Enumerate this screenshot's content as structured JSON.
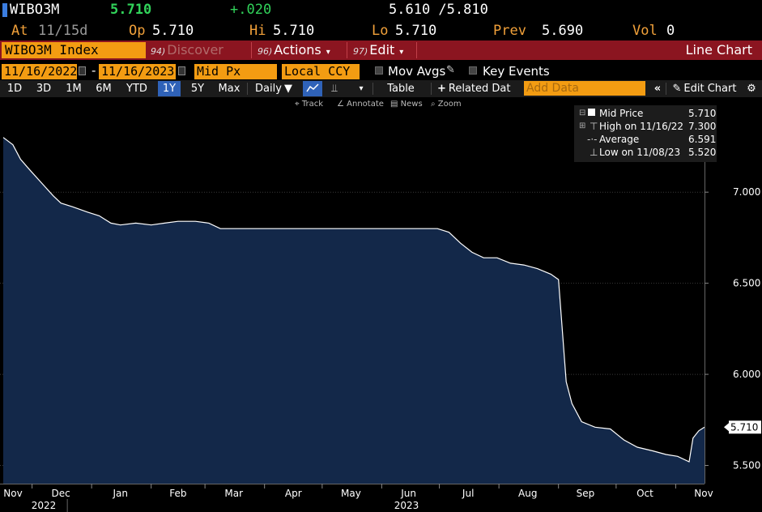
{
  "quote": {
    "ticker": "WIBO3M",
    "last": "5.710",
    "change": "+.020",
    "bid_ask": "5.610 /5.810"
  },
  "stats": {
    "at_label": "At",
    "at_value": "11/15d",
    "open_label": "Op",
    "open_value": "5.710",
    "high_label": "Hi",
    "high_value": "5.710",
    "low_label": "Lo",
    "low_value": "5.710",
    "prev_label": "Prev",
    "prev_value": "5.690",
    "vol_label": "Vol",
    "vol_value": "0"
  },
  "titlebar": {
    "security": "WIBO3M Index",
    "discover_num": "94)",
    "discover": "Discover",
    "actions_num": "96)",
    "actions": "Actions",
    "edit_num": "97)",
    "edit": "Edit",
    "view_name": "Line Chart"
  },
  "params": {
    "start_date": "11/16/2022",
    "date_sep": "-",
    "end_date": "11/16/2023",
    "field": "Mid Px",
    "currency": "Local CCY",
    "mov_avgs": "Mov Avgs",
    "key_events": "Key Events"
  },
  "toolbar": {
    "periods": [
      "1D",
      "3D",
      "1M",
      "6M",
      "YTD",
      "1Y",
      "5Y",
      "Max"
    ],
    "selected_period": "1Y",
    "frequency": "Daily",
    "table": "Table",
    "related": "Related Dat",
    "add_data_placeholder": "Add Data",
    "edit_chart": "Edit Chart"
  },
  "tools": {
    "track": "Track",
    "annotate": "Annotate",
    "news": "News",
    "zoom": "Zoom"
  },
  "legend": {
    "series_label": "Mid Price",
    "series_value": "5.710",
    "high_label": "High on 11/16/22",
    "high_value": "7.300",
    "avg_label": "Average",
    "avg_value": "6.591",
    "low_label": "Low on 11/08/23",
    "low_value": "5.520"
  },
  "colors": {
    "accent_orange": "#f39c12",
    "title_bar_red": "#8b1520",
    "selected_blue": "#2f62b8",
    "area_fill": "#132849",
    "line": "#ffffff",
    "change_green": "#31d35a"
  },
  "chart_data": {
    "type": "area",
    "title": "",
    "xlabel": "",
    "ylabel": "",
    "ylim": [
      5.4,
      7.45
    ],
    "yticks": [
      "7.000",
      "6.500",
      "6.000",
      "5.500"
    ],
    "last_value_label": "5.710",
    "x_month_ticks": [
      "Nov",
      "Dec",
      "Jan",
      "Feb",
      "Mar",
      "Apr",
      "May",
      "Jun",
      "Jul",
      "Aug",
      "Sep",
      "Oct",
      "Nov"
    ],
    "x_year_labels": [
      "2022",
      "2023"
    ],
    "series": [
      {
        "values": [
          [
            "2022-11-16",
            7.3
          ],
          [
            "2022-11-21",
            7.26
          ],
          [
            "2022-11-25",
            7.18
          ],
          [
            "2022-11-30",
            7.12
          ],
          [
            "2022-12-06",
            7.05
          ],
          [
            "2022-12-12",
            6.98
          ],
          [
            "2022-12-16",
            6.94
          ],
          [
            "2022-12-22",
            6.92
          ],
          [
            "2022-12-30",
            6.89
          ],
          [
            "2023-01-05",
            6.87
          ],
          [
            "2023-01-11",
            6.83
          ],
          [
            "2023-01-16",
            6.82
          ],
          [
            "2023-01-24",
            6.83
          ],
          [
            "2023-02-01",
            6.82
          ],
          [
            "2023-02-08",
            6.83
          ],
          [
            "2023-02-15",
            6.84
          ],
          [
            "2023-02-24",
            6.84
          ],
          [
            "2023-03-03",
            6.83
          ],
          [
            "2023-03-09",
            6.8
          ],
          [
            "2023-03-20",
            6.8
          ],
          [
            "2023-04-05",
            6.8
          ],
          [
            "2023-04-20",
            6.8
          ],
          [
            "2023-05-10",
            6.8
          ],
          [
            "2023-05-31",
            6.8
          ],
          [
            "2023-06-20",
            6.8
          ],
          [
            "2023-06-30",
            6.8
          ],
          [
            "2023-07-06",
            6.78
          ],
          [
            "2023-07-12",
            6.72
          ],
          [
            "2023-07-18",
            6.67
          ],
          [
            "2023-07-24",
            6.64
          ],
          [
            "2023-07-31",
            6.64
          ],
          [
            "2023-08-07",
            6.61
          ],
          [
            "2023-08-14",
            6.6
          ],
          [
            "2023-08-21",
            6.58
          ],
          [
            "2023-08-28",
            6.55
          ],
          [
            "2023-09-01",
            6.52
          ],
          [
            "2023-09-05",
            5.96
          ],
          [
            "2023-09-08",
            5.84
          ],
          [
            "2023-09-13",
            5.74
          ],
          [
            "2023-09-20",
            5.71
          ],
          [
            "2023-09-28",
            5.7
          ],
          [
            "2023-10-05",
            5.64
          ],
          [
            "2023-10-12",
            5.6
          ],
          [
            "2023-10-20",
            5.58
          ],
          [
            "2023-10-27",
            5.56
          ],
          [
            "2023-11-02",
            5.55
          ],
          [
            "2023-11-08",
            5.52
          ],
          [
            "2023-11-10",
            5.65
          ],
          [
            "2023-11-13",
            5.69
          ],
          [
            "2023-11-16",
            5.71
          ]
        ]
      }
    ]
  }
}
